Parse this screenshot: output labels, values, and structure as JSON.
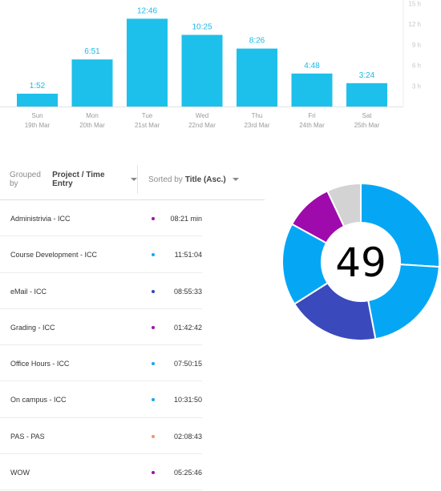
{
  "chart_data": {
    "type": "bar",
    "categories": [
      "Sun",
      "Mon",
      "Tue",
      "Wed",
      "Thu",
      "Fri",
      "Sat"
    ],
    "dates": [
      "19th Mar",
      "20th Mar",
      "21st Mar",
      "22nd Mar",
      "23rd Mar",
      "24th Mar",
      "25th Mar"
    ],
    "values": [
      1.87,
      6.85,
      12.77,
      10.42,
      8.43,
      4.8,
      3.4
    ],
    "value_labels": [
      "1:52",
      "6:51",
      "12:46",
      "10:25",
      "8:26",
      "4:48",
      "3:24"
    ],
    "y_ticks": [
      "3 h",
      "6 h",
      "9 h",
      "12 h",
      "15 h"
    ],
    "y_tick_values": [
      3,
      6,
      9,
      12,
      15
    ],
    "ylim": [
      0,
      15
    ],
    "bar_color": "#1dc0ea",
    "label_color": "#1cb8e6"
  },
  "toolbar": {
    "grouped_prefix": "Grouped by",
    "grouped_value": "Project / Time Entry",
    "sorted_prefix": "Sorted by",
    "sorted_value": "Title (Asc.)"
  },
  "entries": [
    {
      "title": "Administrivia - ICC",
      "time": "08:21 min",
      "color": "#9b13a8"
    },
    {
      "title": "Course Development - ICC",
      "time": "11:51:04",
      "color": "#12a9f0"
    },
    {
      "title": "eMail - ICC",
      "time": "08:55:33",
      "color": "#2f4bb3"
    },
    {
      "title": "Grading - ICC",
      "time": "01:42:42",
      "color": "#9b13a8"
    },
    {
      "title": "Office Hours - ICC",
      "time": "07:50:15",
      "color": "#12a9f0"
    },
    {
      "title": "On campus - ICC",
      "time": "10:31:50",
      "color": "#12a9f0"
    },
    {
      "title": "PAS - PAS",
      "time": "02:08:43",
      "color": "#f0956c"
    },
    {
      "title": "WOW",
      "time": "05:25:46",
      "color": "#9b13a8"
    }
  ],
  "donut": {
    "center_text": "49",
    "slices": [
      {
        "value": 26,
        "color": "#05a7f5"
      },
      {
        "value": 21,
        "color": "#05a7f5"
      },
      {
        "value": 19,
        "color": "#3a49bb"
      },
      {
        "value": 17,
        "color": "#05a7f5"
      },
      {
        "value": 10,
        "color": "#9f0aad"
      },
      {
        "value": 7,
        "color": "#d3d3d3"
      }
    ]
  }
}
